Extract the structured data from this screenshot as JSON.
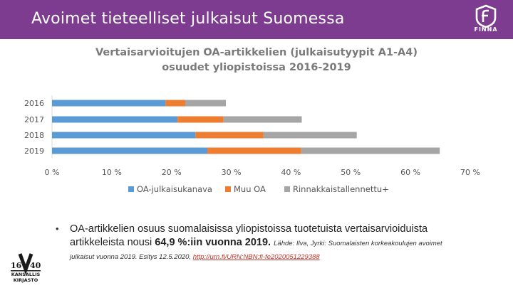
{
  "header": {
    "title": "Avoimet tieteelliset julkaisut Suomessa",
    "logo_text": "FINNA"
  },
  "chart_data": {
    "type": "bar",
    "orientation": "horizontal",
    "stacked": true,
    "title_lines": [
      "Vertaisarvioitujen OA-artikkelien (julkaisutyypit A1-A4)",
      "osuudet yliopistoissa 2016-2019"
    ],
    "categories": [
      "2016",
      "2017",
      "2018",
      "2019"
    ],
    "series": [
      {
        "name": "OA-julkaisukanava",
        "color": "#5b9bd5",
        "values": [
          19,
          21,
          24,
          26
        ]
      },
      {
        "name": "Muu OA",
        "color": "#ed7d31",
        "values": [
          3.3,
          7.7,
          11.4,
          15.7
        ]
      },
      {
        "name": "Rinnakkaistallennettu+",
        "color": "#a5a5a5",
        "values": [
          6.8,
          13.1,
          15.6,
          23.2
        ]
      }
    ],
    "xlim": [
      0,
      70
    ],
    "xticks": [
      0,
      10,
      20,
      30,
      40,
      50,
      60,
      70
    ],
    "xtick_labels": [
      "0 %",
      "10 %",
      "20 %",
      "30 %",
      "40 %",
      "50 %",
      "60 %",
      "70 %"
    ],
    "legend_position": "bottom"
  },
  "bullet": {
    "marker": "•",
    "line1": "OA-artikkelien osuus suomalaisissa yliopistoissa tuotetuista vertaisarvioiduista",
    "line2_main": "artikkeleista nousi ",
    "line2_bold": "64,9 %",
    "line2_rest": ":iin vuonna 2019.",
    "source_a": "Lähde: Ilva, Jyrki: Suomalaisten korkeakoulujen avoimet",
    "source_b": "julkaisut vuonna 2019. Esitys 12.5.2020, ",
    "source_link": "http://urn.fi/URN:NBN:fi-fe2020051229388"
  },
  "library_logo": {
    "year_left": "16",
    "year_right": "40",
    "line1": "KANSALLIS",
    "line2": "KIRJASTO"
  }
}
